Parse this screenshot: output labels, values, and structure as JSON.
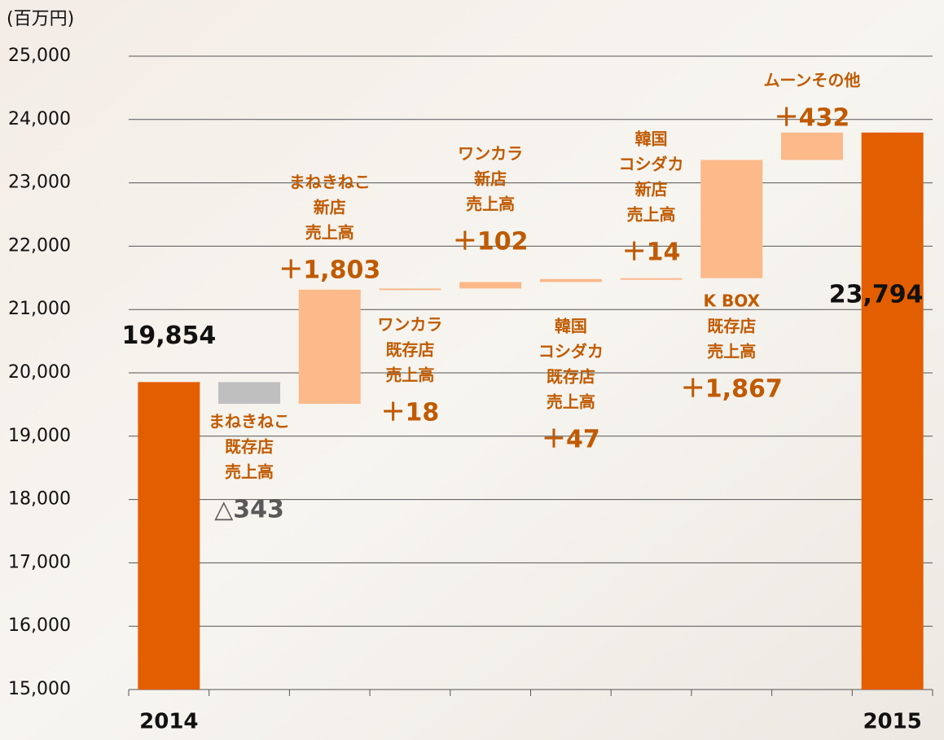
{
  "chart_data": {
    "type": "waterfall",
    "y_label": "(百万円)",
    "categories": [
      "2014",
      null,
      null,
      null,
      null,
      null,
      null,
      null,
      null,
      "2015"
    ],
    "values": [
      19854,
      -343,
      1803,
      18,
      102,
      47,
      14,
      1867,
      432,
      23794
    ],
    "value_labels": [
      "19,854",
      "△343",
      "＋1,803",
      "＋18",
      "＋102",
      "＋47",
      "＋14",
      "＋1,867",
      "＋432",
      "23,794"
    ],
    "is_total": [
      true,
      false,
      false,
      false,
      false,
      false,
      false,
      false,
      false,
      true
    ],
    "step_labels": [
      null,
      [
        "まねきねこ",
        "既存店",
        "売上高"
      ],
      [
        "まねきねこ",
        "新店",
        "売上高"
      ],
      [
        "ワンカラ",
        "既存店",
        "売上高"
      ],
      [
        "ワンカラ",
        "新店",
        "売上高"
      ],
      [
        "韓国",
        "コシダカ",
        "既存店",
        "売上高"
      ],
      [
        "韓国",
        "コシダカ",
        "新店",
        "売上高"
      ],
      [
        "K BOX",
        "既存店",
        "売上高"
      ],
      [
        "ムーンその他"
      ],
      null
    ],
    "total_color": "#e35e00",
    "increase_color": "#fcb98a",
    "decrease_color": "#bfbfbf",
    "ylim": [
      15000,
      25000
    ],
    "yticks": [
      {
        "value": 15000,
        "label": "15,000"
      },
      {
        "value": 16000,
        "label": "16,000"
      },
      {
        "value": 17000,
        "label": "17,000"
      },
      {
        "value": 18000,
        "label": "18,000"
      },
      {
        "value": 19000,
        "label": "19,000"
      },
      {
        "value": 20000,
        "label": "20,000"
      },
      {
        "value": 21000,
        "label": "21,000"
      },
      {
        "value": 22000,
        "label": "22,000"
      },
      {
        "value": 23000,
        "label": "23,000"
      },
      {
        "value": 24000,
        "label": "24,000"
      },
      {
        "value": 25000,
        "label": "25,000"
      }
    ],
    "grid": true
  }
}
